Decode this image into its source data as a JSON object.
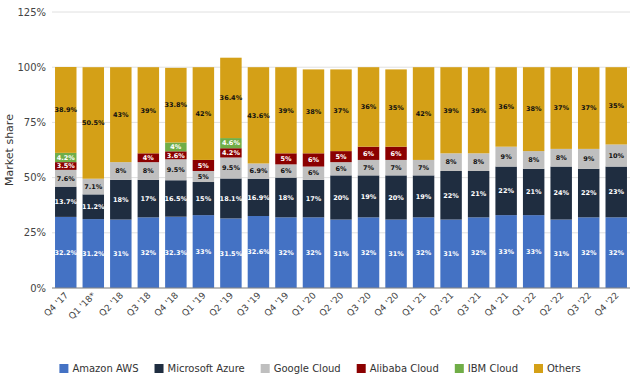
{
  "chart_data": {
    "type": "bar",
    "stacked": true,
    "data_labels": true,
    "grid": true,
    "legend": "bottom",
    "y_label": "Market share",
    "categories": [
      "Q4 '17",
      "Q1 '18*",
      "Q2 '18",
      "Q3 '18",
      "Q4 '18",
      "Q1 '19",
      "Q2 '19",
      "Q3 '19",
      "Q4 '19",
      "Q1 '20",
      "Q2 '20",
      "Q3 '20",
      "Q4 '20",
      "Q1 '21",
      "Q2 '21",
      "Q3 '21",
      "Q4 '21",
      "Q1 '22",
      "Q2 '22",
      "Q3 '22",
      "Q4 '22"
    ],
    "ylim": [
      0,
      125
    ],
    "yticks": [
      {
        "value": 0,
        "label": "0%"
      },
      {
        "value": 25,
        "label": "25%"
      },
      {
        "value": 50,
        "label": "50%"
      },
      {
        "value": 75,
        "label": "75%"
      },
      {
        "value": 100,
        "label": "100%"
      },
      {
        "value": 125,
        "label": "125%"
      }
    ],
    "series": [
      {
        "name": "Amazon AWS",
        "color": "#4472c4",
        "values": [
          32.2,
          31.2,
          31,
          32,
          32.3,
          33,
          31.5,
          32.6,
          32,
          32,
          31,
          32,
          31,
          32,
          31,
          32,
          33,
          33,
          31,
          32,
          32
        ],
        "value_labels": [
          "32.2%",
          "31.2%",
          "31%",
          "32%",
          "32.3%",
          "33%",
          "31.5%",
          "32.6%",
          "32%",
          "32%",
          "31%",
          "32%",
          "31%",
          "32%",
          "31%",
          "32%",
          "33%",
          "33%",
          "31%",
          "32%",
          "32%"
        ]
      },
      {
        "name": "Microsoft Azure",
        "color": "#1f2d40",
        "values": [
          13.7,
          11.2,
          18,
          17,
          16.5,
          15,
          18.1,
          16.9,
          18,
          17,
          20,
          19,
          20,
          19,
          22,
          21,
          22,
          21,
          24,
          22,
          23
        ],
        "value_labels": [
          "13.7%",
          "11.2%",
          "18%",
          "17%",
          "16.5%",
          "15%",
          "18.1%",
          "16.9%",
          "18%",
          "17%",
          "20%",
          "19%",
          "20%",
          "19%",
          "22%",
          "21%",
          "22%",
          "21%",
          "24%",
          "22%",
          "23%"
        ]
      },
      {
        "name": "Google Cloud",
        "color": "#bfbfbf",
        "values": [
          7.6,
          7.1,
          8,
          8,
          9.5,
          5,
          9.5,
          6.9,
          6,
          6,
          6,
          7,
          7,
          7,
          8,
          8,
          9,
          8,
          8,
          9,
          10
        ],
        "value_labels": [
          "7.6%",
          "7.1%",
          "8%",
          "8%",
          "9.5%",
          "5%",
          "9.5%",
          "6.9%",
          "6%",
          "6%",
          "6%",
          "7%",
          "7%",
          "7%",
          "8%",
          "8%",
          "9%",
          "8%",
          "8%",
          "9%",
          "10%"
        ]
      },
      {
        "name": "Alibaba Cloud",
        "color": "#8b0000",
        "values": [
          3.5,
          0,
          0,
          4,
          3.6,
          5,
          4.2,
          0,
          5,
          6,
          5,
          6,
          6,
          0,
          0,
          0,
          0,
          0,
          0,
          0,
          0
        ],
        "value_labels": [
          "3.5%",
          null,
          null,
          "4%",
          "3.6%",
          "5%",
          "4.2%",
          null,
          "5%",
          "6%",
          "5%",
          "6%",
          "6%",
          null,
          null,
          null,
          null,
          null,
          null,
          null,
          null
        ]
      },
      {
        "name": "IBM Cloud",
        "color": "#70ad47",
        "values": [
          4.2,
          0,
          0,
          0,
          4,
          0,
          4.6,
          0,
          0,
          0,
          0,
          0,
          0,
          0,
          0,
          0,
          0,
          0,
          0,
          0,
          0
        ],
        "value_labels": [
          "4.2%",
          null,
          null,
          null,
          "4%",
          null,
          "4.6%",
          null,
          null,
          null,
          null,
          null,
          null,
          null,
          null,
          null,
          null,
          null,
          null,
          null,
          null
        ]
      },
      {
        "name": "Others",
        "color": "#d4a017",
        "values": [
          38.9,
          50.5,
          43,
          39,
          33.8,
          42,
          36.4,
          43.6,
          39,
          38,
          37,
          36,
          35,
          42,
          39,
          39,
          36,
          38,
          37,
          37,
          35
        ],
        "value_labels": [
          "38.9%",
          "50.5%",
          "43%",
          "39%",
          "33.8%",
          "42%",
          "36.4%",
          "43.6%",
          "39%",
          "38%",
          "37%",
          "36%",
          "35%",
          "42%",
          "39%",
          "39%",
          "36%",
          "38%",
          "37%",
          "37%",
          "35%"
        ]
      }
    ]
  }
}
